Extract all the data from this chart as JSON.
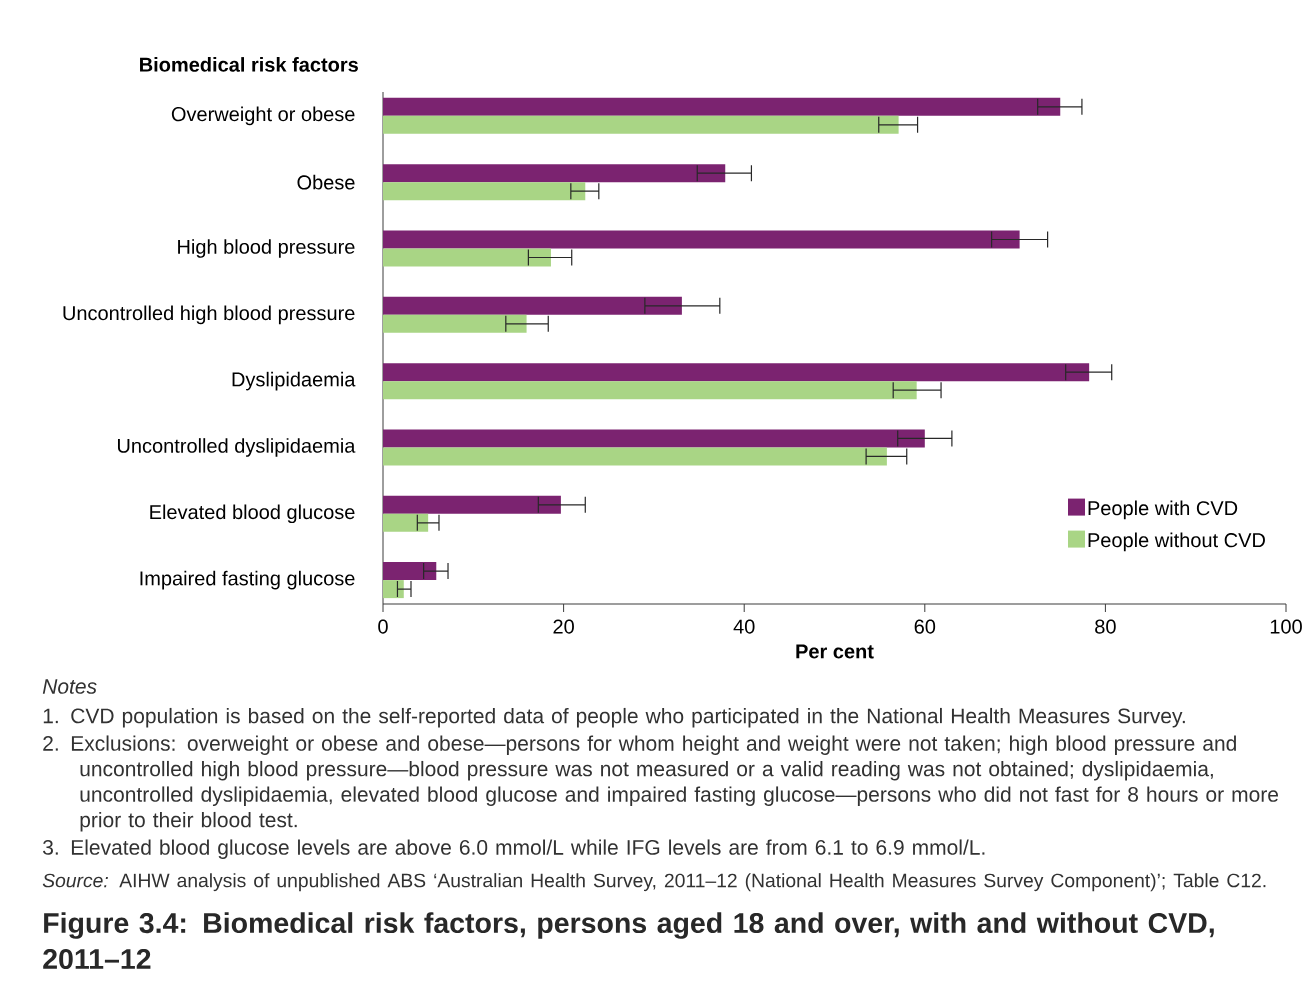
{
  "chart_data": {
    "type": "bar",
    "orientation": "horizontal",
    "title": "Figure 3.4: Biomedical risk factors, persons aged 18 and over, with and without CVD, 2011–12",
    "ylabel": "Biomedical risk factors",
    "xlabel": "Per cent",
    "categories": [
      "Overweight or obese",
      "Obese",
      "High blood pressure",
      "Uncontrolled high blood pressure",
      "Dyslipidaemia",
      "Uncontrolled dyslipidaemia",
      "Elevated blood glucose",
      "Impaired fasting glucose"
    ],
    "series": [
      {
        "name": "People with CVD",
        "color": "#7b2370",
        "values": [
          75.0,
          37.9,
          70.5,
          33.1,
          78.2,
          60.0,
          19.7,
          5.9
        ],
        "errors": [
          [
            72.5,
            77.4
          ],
          [
            34.8,
            40.8
          ],
          [
            67.4,
            73.6
          ],
          [
            29.0,
            37.3
          ],
          [
            75.6,
            80.7
          ],
          [
            57.0,
            63.0
          ],
          [
            17.2,
            22.4
          ],
          [
            4.5,
            7.2
          ]
        ]
      },
      {
        "name": "People without CVD",
        "color": "#a9d585",
        "values": [
          57.1,
          22.4,
          18.6,
          15.9,
          59.1,
          55.8,
          5.0,
          2.3
        ],
        "errors": [
          [
            54.9,
            59.2
          ],
          [
            20.8,
            23.9
          ],
          [
            16.1,
            20.9
          ],
          [
            13.6,
            18.3
          ],
          [
            56.5,
            61.8
          ],
          [
            53.5,
            58.0
          ],
          [
            3.8,
            6.2
          ],
          [
            1.6,
            3.1
          ]
        ]
      }
    ],
    "xlim": [
      0,
      100
    ],
    "xticks": [
      0,
      20,
      40,
      60,
      80,
      100
    ],
    "legend": "bottom right",
    "annotations": [
      "Notes",
      "1.   CVD population is based on the self-reported data of people who participated in the National Health Measures Survey.",
      "2.   Exclusions: overweight or obese and obese—persons for whom height and weight were not taken; high blood pressure and uncontrolled high blood pressure—blood pressure was not measured or a valid reading was not obtained; dyslipidaemia, uncontrolled dyslipidaemia, elevated blood glucose and impaired fasting glucose—persons who did not fast for 8 hours or more prior to their blood test.",
      "3.   Elevated blood glucose levels are above 6.0 mmol/L while IFG levels are from 6.1 to 6.9 mmol/L.",
      "*Source:* AIHW analysis of unpublished ABS ‘Australian Health Survey, 2011–12 (National Health Measures Survey Component)’; Table C12."
    ]
  }
}
